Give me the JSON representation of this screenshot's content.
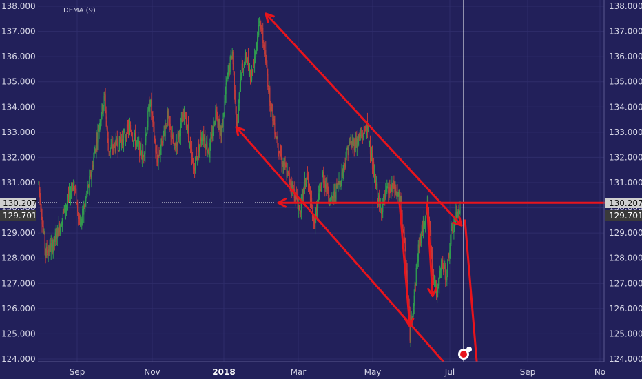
{
  "indicator_label": "DEMA (9)",
  "price_tags": {
    "left_current": "130.207",
    "left_secondary": "129.701",
    "right_current": "130.207",
    "right_secondary": "129.701"
  },
  "colors": {
    "background": "#22205a",
    "grid": "#2f2d6b",
    "candle_up": "#2f9e4f",
    "candle_down": "#c43a3a",
    "annotation": "#e8141c",
    "cursor_line": "#ffffff"
  },
  "chart_data": {
    "type": "candlestick",
    "ylim": [
      124,
      138
    ],
    "y_ticks": [
      "124.000",
      "125.000",
      "126.000",
      "127.000",
      "128.000",
      "129.000",
      "130.000",
      "131.000",
      "132.000",
      "133.000",
      "134.000",
      "135.000",
      "136.000",
      "137.000",
      "138.000"
    ],
    "x_ticks": [
      {
        "label": "Sep",
        "bold": false
      },
      {
        "label": "Nov",
        "bold": false
      },
      {
        "label": "2018",
        "bold": true
      },
      {
        "label": "Mar",
        "bold": false
      },
      {
        "label": "May",
        "bold": false
      },
      {
        "label": "Jul",
        "bold": false
      },
      {
        "label": "Sep",
        "bold": false
      },
      {
        "label": "No",
        "bold": false
      }
    ],
    "price_keypoints": [
      [
        0,
        131.0
      ],
      [
        10,
        128.2
      ],
      [
        22,
        128.6
      ],
      [
        50,
        131.0
      ],
      [
        60,
        129.3
      ],
      [
        75,
        131.3
      ],
      [
        88,
        133.5
      ],
      [
        95,
        134.4
      ],
      [
        100,
        132.3
      ],
      [
        118,
        132.6
      ],
      [
        130,
        133.2
      ],
      [
        150,
        132.0
      ],
      [
        160,
        134.3
      ],
      [
        170,
        131.8
      ],
      [
        185,
        133.6
      ],
      [
        195,
        132.3
      ],
      [
        210,
        133.8
      ],
      [
        222,
        131.5
      ],
      [
        235,
        133.0
      ],
      [
        245,
        132.2
      ],
      [
        255,
        134.0
      ],
      [
        262,
        132.8
      ],
      [
        270,
        135.0
      ],
      [
        278,
        136.2
      ],
      [
        285,
        133.0
      ],
      [
        290,
        135.3
      ],
      [
        298,
        136.0
      ],
      [
        305,
        135.2
      ],
      [
        318,
        137.5
      ],
      [
        325,
        136.0
      ],
      [
        332,
        134.3
      ],
      [
        340,
        133.0
      ],
      [
        350,
        131.8
      ],
      [
        365,
        130.8
      ],
      [
        375,
        129.9
      ],
      [
        385,
        131.3
      ],
      [
        395,
        129.3
      ],
      [
        408,
        131.3
      ],
      [
        420,
        130.2
      ],
      [
        435,
        131.3
      ],
      [
        445,
        132.5
      ],
      [
        455,
        132.6
      ],
      [
        465,
        132.9
      ],
      [
        470,
        133.3
      ],
      [
        475,
        132.6
      ],
      [
        480,
        131.5
      ],
      [
        490,
        129.9
      ],
      [
        500,
        130.6
      ],
      [
        510,
        130.8
      ],
      [
        520,
        130.2
      ],
      [
        528,
        127.5
      ],
      [
        533,
        125.0
      ],
      [
        540,
        126.8
      ],
      [
        545,
        128.4
      ],
      [
        552,
        129.3
      ],
      [
        558,
        130.2
      ],
      [
        565,
        127.8
      ],
      [
        572,
        126.4
      ],
      [
        578,
        127.8
      ],
      [
        585,
        127.3
      ],
      [
        592,
        128.9
      ],
      [
        598,
        129.5
      ],
      [
        605,
        130.2
      ]
    ],
    "annotations": {
      "upper_channel": [
        [
          137.7,
          "2018-02-early"
        ],
        [
          129.3,
          "2018-07"
        ]
      ],
      "lower_channel": [
        [
          133.2,
          "2018-01"
        ],
        [
          124.0,
          "2018-06"
        ]
      ],
      "horizontal_level": 130.2,
      "projection_target": 124.0
    }
  }
}
